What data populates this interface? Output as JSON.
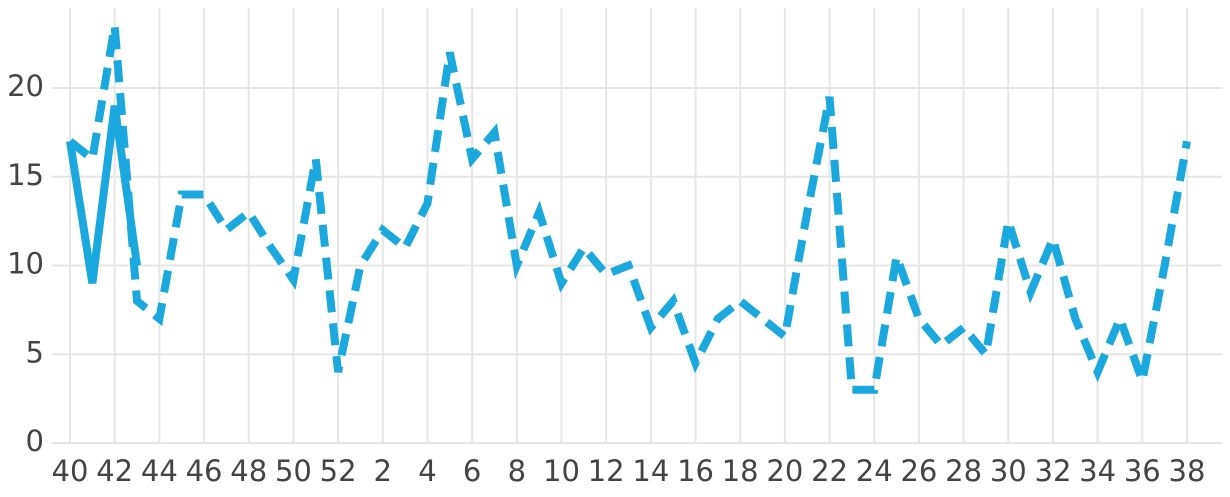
{
  "chart_data": {
    "type": "line",
    "categories": [
      "40",
      null,
      "42",
      null,
      "44",
      null,
      "46",
      null,
      "48",
      null,
      "50",
      null,
      "52",
      null,
      "2",
      null,
      "4",
      null,
      "6",
      null,
      "8",
      null,
      "10",
      null,
      "12",
      null,
      "14",
      null,
      "16",
      null,
      "18",
      null,
      "20",
      null,
      "22",
      null,
      "24",
      null,
      "26",
      null,
      "28",
      null,
      "30",
      null,
      "32",
      null,
      "34",
      null,
      "36",
      null,
      "38"
    ],
    "series": [
      {
        "color": "#1ba8dc",
        "dash": true,
        "values": [
          17,
          16,
          23.5,
          8,
          7,
          14,
          14,
          12,
          13,
          11,
          9.2,
          16,
          4,
          10,
          12,
          11,
          13.5,
          22,
          16,
          17.5,
          10,
          13,
          9,
          11,
          9.5,
          10,
          6.5,
          8,
          4.5,
          7,
          8,
          7,
          6,
          13,
          19.5,
          3,
          3,
          10.5,
          7,
          5.5,
          6.5,
          5,
          12.5,
          8.5,
          11.5,
          7,
          4,
          7,
          3.5,
          10,
          17
        ]
      },
      {
        "color": "#1ba8dc",
        "dash": false,
        "values": [
          17,
          9,
          19,
          10,
          null,
          null,
          null,
          null,
          null,
          null,
          null,
          null,
          null,
          null,
          null,
          null,
          null,
          null,
          null,
          null,
          null,
          null,
          null,
          null,
          null,
          null,
          null,
          null,
          null,
          null,
          null,
          null,
          null,
          null,
          null,
          null,
          null,
          null,
          null,
          null,
          null,
          null,
          null,
          null,
          null,
          null,
          null,
          null,
          null,
          null,
          null
        ]
      }
    ],
    "ylim": [
      0,
      24
    ],
    "yticks": [
      0,
      5,
      10,
      15,
      20
    ],
    "grid": true
  }
}
